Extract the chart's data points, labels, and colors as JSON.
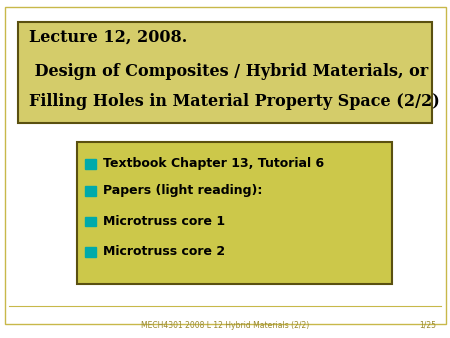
{
  "bg_color": "#ffffff",
  "outer_border_color": "#c8b84a",
  "title_box_bg_top": "#d4cc6a",
  "title_box_bg_bot": "#b8b040",
  "title_box_border": "#5a5010",
  "title_line1": "Lecture 12, 2008.",
  "title_line2": " Design of Composites / Hybrid Materials, or",
  "title_line3": "Filling Holes in Material Property Space (2/2)",
  "title_fontsize": 11.5,
  "bullet_box_bg": "#ccc84a",
  "bullet_box_border": "#5a5010",
  "bullet_items": [
    "Textbook Chapter 13, Tutorial 6",
    "Papers (light reading):",
    "Microtruss core 1",
    "Microtruss core 2"
  ],
  "bullet_bold": [
    true,
    true,
    true,
    true
  ],
  "bullet_color": "#00aaaa",
  "footer_left": "MECH4301 2008 L 12 Hybrid Materials (2/2)",
  "footer_right": "1/25",
  "footer_color": "#9a8a30",
  "text_color": "#000000"
}
